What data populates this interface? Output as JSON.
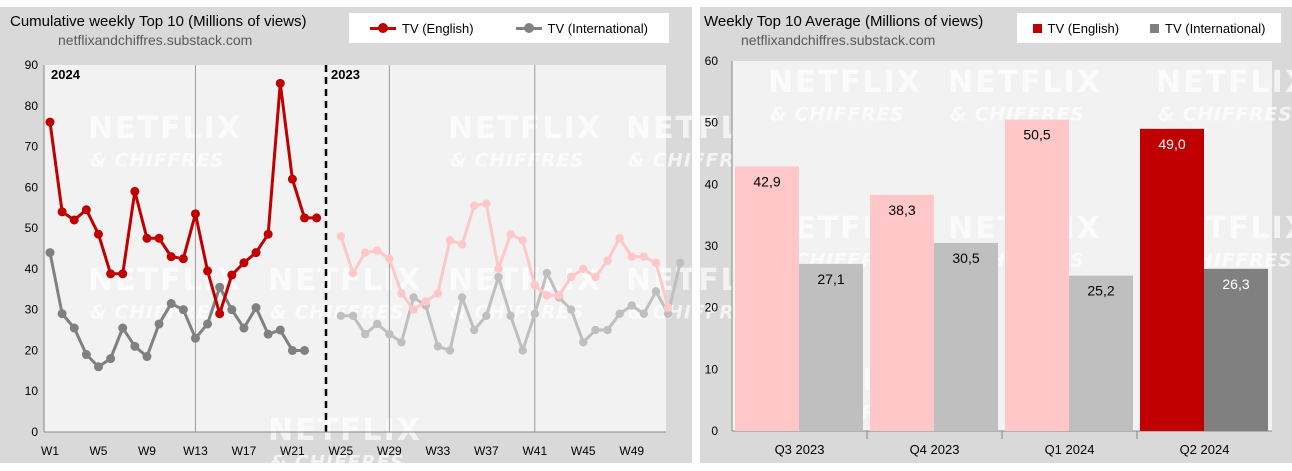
{
  "left_chart": {
    "title": "Cumulative weekly Top 10 (Millions of views)",
    "subtitle": "netflixandchiffres.substack.com",
    "legend": [
      {
        "label": "TV (English)",
        "color": "#c00000"
      },
      {
        "label": "TV (International)",
        "color": "#808080"
      }
    ],
    "year_labels": [
      "2024",
      "2023"
    ],
    "watermark": [
      "NETFLIX",
      "& CHIFFRES"
    ]
  },
  "right_chart": {
    "title": "Weekly Top 10 Average (Millions of views)",
    "subtitle": "netflixandchiffres.substack.com",
    "legend": [
      {
        "label": "TV (English)",
        "color": "#c00000"
      },
      {
        "label": "TV (International)",
        "color": "#808080"
      }
    ],
    "watermark": [
      "NETFLIX",
      "& CHIFFRES"
    ]
  },
  "chart_data": [
    {
      "type": "line",
      "title": "Cumulative weekly Top 10 (Millions of views)",
      "ylim": [
        0,
        90
      ],
      "yticks": [
        0,
        10,
        20,
        30,
        40,
        50,
        60,
        70,
        80,
        90
      ],
      "xticks": [
        "W1",
        "W5",
        "W9",
        "W13",
        "W17",
        "W21",
        "W25",
        "W29",
        "W33",
        "W37",
        "W41",
        "W45",
        "W49"
      ],
      "grid": "vertical lines at W13, W29, W41; dashed separator between 2024 and 2023",
      "series": [
        {
          "name": "TV (English)",
          "year": "2024",
          "color": "#c00000",
          "x": [
            1,
            2,
            3,
            4,
            5,
            6,
            7,
            8,
            9,
            10,
            11,
            12,
            13,
            14,
            15,
            16,
            17,
            18,
            19,
            20,
            21,
            22,
            23
          ],
          "values": [
            76,
            54,
            52,
            54.5,
            48.5,
            38.8,
            38.8,
            59,
            47.5,
            47.5,
            43,
            42.5,
            53.5,
            39.5,
            29,
            38.5,
            41.5,
            44,
            48.5,
            85.5,
            62,
            52.5,
            52.5
          ]
        },
        {
          "name": "TV (International)",
          "year": "2024",
          "color": "#808080",
          "x": [
            1,
            2,
            3,
            4,
            5,
            6,
            7,
            8,
            9,
            10,
            11,
            12,
            13,
            14,
            15,
            16,
            17,
            18,
            19,
            20,
            21,
            22
          ],
          "values": [
            44,
            29,
            25.5,
            19,
            16,
            18,
            25.5,
            21,
            18.5,
            26.5,
            31.5,
            30,
            23,
            26.5,
            35.5,
            30,
            25.5,
            30.5,
            24,
            25,
            20,
            20
          ]
        },
        {
          "name": "TV (English)",
          "year": "2023",
          "color": "#ffc7c7",
          "x": [
            25,
            26,
            27,
            28,
            29,
            30,
            31,
            32,
            33,
            34,
            35,
            36,
            37,
            38,
            39,
            40,
            41,
            42,
            43,
            44,
            45,
            46,
            47,
            48,
            49,
            50,
            51,
            52
          ],
          "values": [
            48,
            39,
            44,
            44.5,
            42.5,
            34,
            30,
            32,
            34,
            47,
            46,
            55.5,
            56,
            40,
            48.5,
            47,
            36,
            33.5,
            33.5,
            38,
            40,
            38,
            42,
            47.5,
            43,
            43,
            41.5,
            30.5
          ]
        },
        {
          "name": "TV (International)",
          "year": "2023",
          "color": "#bfbfbf",
          "x": [
            25,
            26,
            27,
            28,
            29,
            30,
            31,
            32,
            33,
            34,
            35,
            36,
            37,
            38,
            39,
            40,
            41,
            42,
            43,
            44,
            45,
            46,
            47,
            48,
            49,
            50,
            51,
            52
          ],
          "values": [
            28.5,
            28.5,
            24,
            26.5,
            24,
            22,
            33,
            31,
            21,
            20,
            33,
            25,
            28.5,
            38,
            28.5,
            20,
            29,
            39,
            33,
            30,
            22,
            25,
            25,
            29,
            31,
            29,
            34.5,
            29
          ]
        },
        {
          "name": "TV (International)",
          "year": "2023 (W52 end)",
          "color": "#bfbfbf",
          "x": [
            52,
            53
          ],
          "values": [
            29,
            41.5
          ]
        }
      ]
    },
    {
      "type": "bar",
      "title": "Weekly Top 10 Average (Millions of views)",
      "categories": [
        "Q3 2023",
        "Q4 2023",
        "Q1 2024",
        "Q2 2024"
      ],
      "ylim": [
        0,
        60
      ],
      "yticks": [
        0,
        10,
        20,
        30,
        40,
        50,
        60
      ],
      "series": [
        {
          "name": "TV (English)",
          "values": [
            42.9,
            38.3,
            50.5,
            49.0
          ],
          "labels": [
            "42,9",
            "38,3",
            "50,5",
            "49,0"
          ],
          "colors": [
            "#ffc7c7",
            "#ffc7c7",
            "#ffc7c7",
            "#c00000"
          ],
          "label_colors": [
            "#000000",
            "#000000",
            "#000000",
            "#ffffff"
          ]
        },
        {
          "name": "TV (International)",
          "values": [
            27.1,
            30.5,
            25.2,
            26.3
          ],
          "labels": [
            "27,1",
            "30,5",
            "25,2",
            "26,3"
          ],
          "colors": [
            "#bfbfbf",
            "#bfbfbf",
            "#bfbfbf",
            "#808080"
          ],
          "label_colors": [
            "#000000",
            "#000000",
            "#000000",
            "#ffffff"
          ]
        }
      ]
    }
  ]
}
